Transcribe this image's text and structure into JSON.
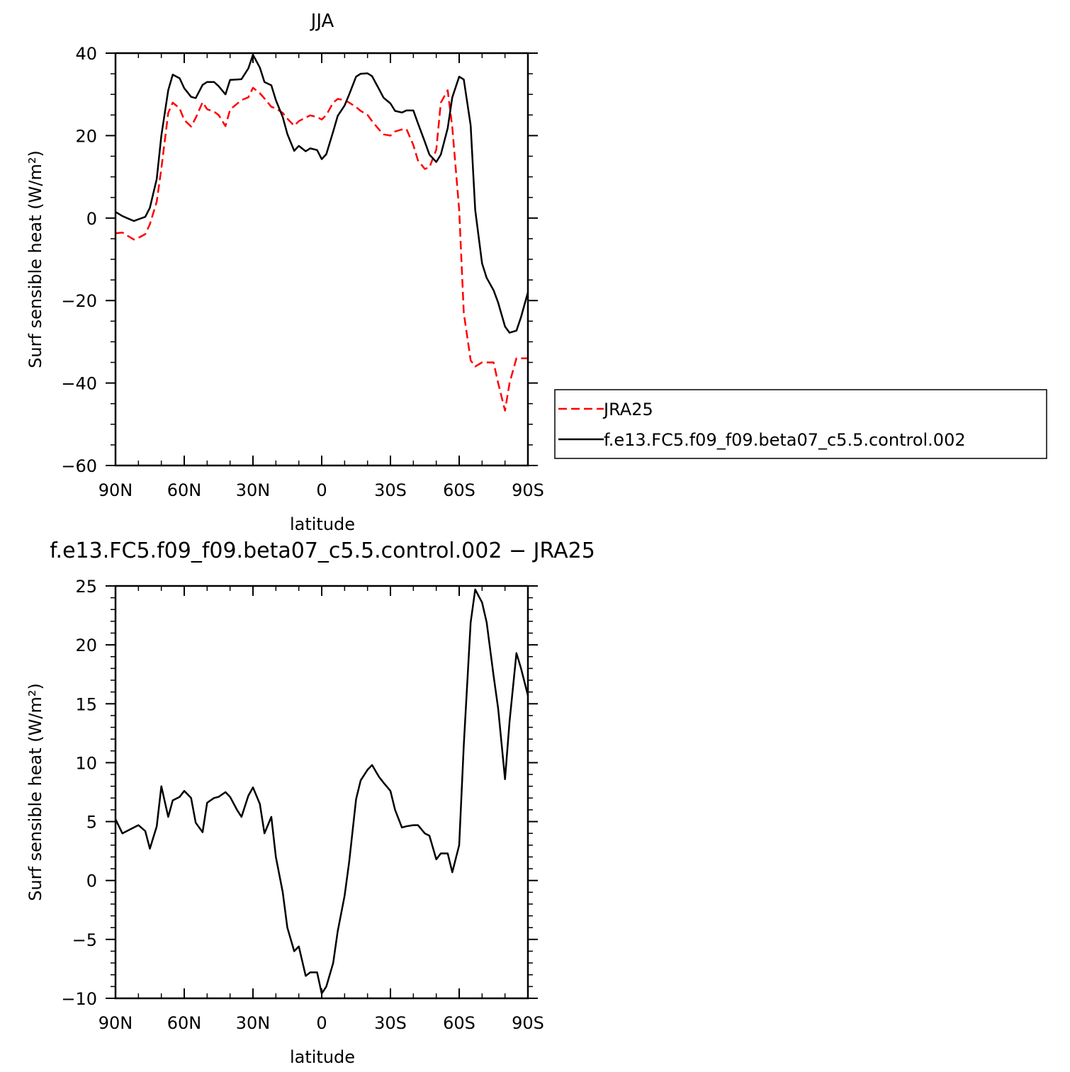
{
  "chart_data": [
    {
      "type": "line",
      "title": "JJA",
      "xlabel": "latitude",
      "ylabel": "Surf sensible heat (W/m²)",
      "xlim": [
        -90,
        90
      ],
      "ylim": [
        -60,
        40
      ],
      "x_ticks": [
        -90,
        -60,
        -30,
        0,
        30,
        60,
        90
      ],
      "x_tick_labels": [
        "90N",
        "60N",
        "30N",
        "0",
        "30S",
        "60S",
        "90S"
      ],
      "y_ticks": [
        -60,
        -40,
        -20,
        0,
        20,
        40
      ],
      "y_tick_labels": [
        "−60",
        "−40",
        "−20",
        "0",
        "20",
        "40"
      ],
      "legend_position": "right",
      "series": [
        {
          "name": "JRA25",
          "color": "#ff0000",
          "dash": "dashed",
          "x": [
            -90,
            -87,
            -85,
            -82,
            -80,
            -77,
            -75,
            -72,
            -70,
            -67,
            -65,
            -62,
            -60,
            -57,
            -55,
            -52,
            -50,
            -47,
            -45,
            -42,
            -40,
            -37,
            -35,
            -32,
            -30,
            -27,
            -25,
            -22,
            -20,
            -17,
            -15,
            -12,
            -10,
            -7,
            -5,
            -2,
            0,
            2,
            5,
            7,
            10,
            12,
            15,
            17,
            20,
            22,
            25,
            27,
            30,
            32,
            35,
            37,
            40,
            42,
            45,
            47,
            50,
            52,
            55,
            57,
            60,
            62,
            65,
            67,
            70,
            72,
            75,
            77,
            80,
            82,
            85,
            87,
            90
          ],
          "values": [
            -3.7,
            -3.5,
            -4.2,
            -5.2,
            -4.8,
            -3.9,
            -1.5,
            4.0,
            12.0,
            25.5,
            28.0,
            26.6,
            23.8,
            22.2,
            24.3,
            28.1,
            26.4,
            25.8,
            25.0,
            22.3,
            26.3,
            27.7,
            28.6,
            29.3,
            31.6,
            30.3,
            29.0,
            27.0,
            26.6,
            25.5,
            24.1,
            22.4,
            23.5,
            24.4,
            24.9,
            24.5,
            23.9,
            25.0,
            28.0,
            28.9,
            28.6,
            28.0,
            26.9,
            26.0,
            25.0,
            23.5,
            21.5,
            20.3,
            20.0,
            21.0,
            21.5,
            21.6,
            17.7,
            14.0,
            11.9,
            12.3,
            16.6,
            28.0,
            31.0,
            22.0,
            2.0,
            -23.0,
            -34.5,
            -36.0,
            -35.0,
            -35.0,
            -35.0,
            -40.0,
            -46.7,
            -40.0,
            -34.0,
            -34.0,
            -34.0
          ]
        },
        {
          "name": "f.e13.FC5.f09_f09.beta07_c5.5.control.002",
          "color": "#000000",
          "dash": "solid",
          "x": [
            -90,
            -87,
            -85,
            -82,
            -80,
            -77,
            -75,
            -72,
            -70,
            -67,
            -65,
            -62,
            -60,
            -57,
            -55,
            -52,
            -50,
            -47,
            -45,
            -42,
            -40,
            -37,
            -35,
            -32,
            -30,
            -27,
            -25,
            -22,
            -20,
            -17,
            -15,
            -12,
            -10,
            -7,
            -5,
            -2,
            0,
            2,
            5,
            7,
            10,
            12,
            15,
            17,
            20,
            22,
            25,
            27,
            30,
            32,
            35,
            37,
            40,
            42,
            45,
            47,
            50,
            52,
            55,
            57,
            60,
            62,
            65,
            67,
            70,
            72,
            75,
            77,
            80,
            82,
            85,
            87,
            90
          ],
          "values": [
            1.5,
            0.5,
            0.0,
            -0.7,
            -0.3,
            0.3,
            2.5,
            9.5,
            20.0,
            31.0,
            34.8,
            33.9,
            31.5,
            29.4,
            29.1,
            32.3,
            33.0,
            33.0,
            32.0,
            30.0,
            33.5,
            33.6,
            33.7,
            36.3,
            39.6,
            36.5,
            33.0,
            32.2,
            28.6,
            24.5,
            20.4,
            16.3,
            17.5,
            16.2,
            16.9,
            16.5,
            14.3,
            15.5,
            21.0,
            24.8,
            27.3,
            30.0,
            34.3,
            35.0,
            35.1,
            34.4,
            31.3,
            29.2,
            27.8,
            26.0,
            25.6,
            26.1,
            26.1,
            23.0,
            18.5,
            15.4,
            13.6,
            15.4,
            21.8,
            29.3,
            34.3,
            33.6,
            22.5,
            2.0,
            -11.0,
            -14.5,
            -17.5,
            -20.5,
            -26.3,
            -27.8,
            -27.3,
            -24.0,
            -18.0
          ]
        }
      ]
    },
    {
      "type": "line",
      "title": "f.e13.FC5.f09_f09.beta07_c5.5.control.002 − JRA25",
      "xlabel": "latitude",
      "ylabel": "Surf sensible heat (W/m²)",
      "xlim": [
        -90,
        90
      ],
      "ylim": [
        -10,
        25
      ],
      "x_ticks": [
        -90,
        -60,
        -30,
        0,
        30,
        60,
        90
      ],
      "x_tick_labels": [
        "90N",
        "60N",
        "30N",
        "0",
        "30S",
        "60S",
        "90S"
      ],
      "y_ticks": [
        -10,
        -5,
        0,
        5,
        10,
        15,
        20,
        25
      ],
      "y_tick_labels": [
        "−10",
        "−5",
        "0",
        "5",
        "10",
        "15",
        "20",
        "25"
      ],
      "series": [
        {
          "color": "#000000",
          "dash": "solid",
          "x": [
            -90,
            -87,
            -85,
            -82,
            -80,
            -77,
            -75,
            -72,
            -70,
            -67,
            -65,
            -62,
            -60,
            -57,
            -55,
            -52,
            -50,
            -47,
            -45,
            -42,
            -40,
            -37,
            -35,
            -32,
            -30,
            -27,
            -25,
            -22,
            -20,
            -17,
            -15,
            -12,
            -10,
            -7,
            -5,
            -2,
            0,
            2,
            5,
            7,
            10,
            12,
            15,
            17,
            20,
            22,
            25,
            27,
            30,
            32,
            35,
            37,
            40,
            42,
            45,
            47,
            50,
            52,
            55,
            57,
            60,
            62,
            65,
            67,
            70,
            72,
            75,
            77,
            80,
            82,
            85,
            87,
            90
          ],
          "values": [
            5.2,
            4.0,
            4.2,
            4.5,
            4.7,
            4.2,
            2.7,
            4.6,
            8.0,
            5.4,
            6.8,
            7.1,
            7.6,
            7.0,
            4.9,
            4.1,
            6.6,
            7.0,
            7.1,
            7.5,
            7.1,
            6.0,
            5.4,
            7.2,
            7.9,
            6.5,
            4.0,
            5.4,
            2.0,
            -1.0,
            -4.0,
            -6.0,
            -5.6,
            -8.1,
            -7.8,
            -7.8,
            -9.6,
            -9.0,
            -7.0,
            -4.3,
            -1.3,
            1.6,
            6.9,
            8.5,
            9.4,
            9.8,
            8.8,
            8.3,
            7.6,
            6.0,
            4.5,
            4.6,
            4.7,
            4.7,
            4.0,
            3.8,
            1.8,
            2.3,
            2.3,
            0.7,
            3.0,
            11.5,
            21.9,
            24.7,
            23.6,
            21.9,
            17.4,
            14.6,
            8.6,
            13.5,
            19.3,
            18.0,
            15.7
          ]
        }
      ]
    }
  ]
}
